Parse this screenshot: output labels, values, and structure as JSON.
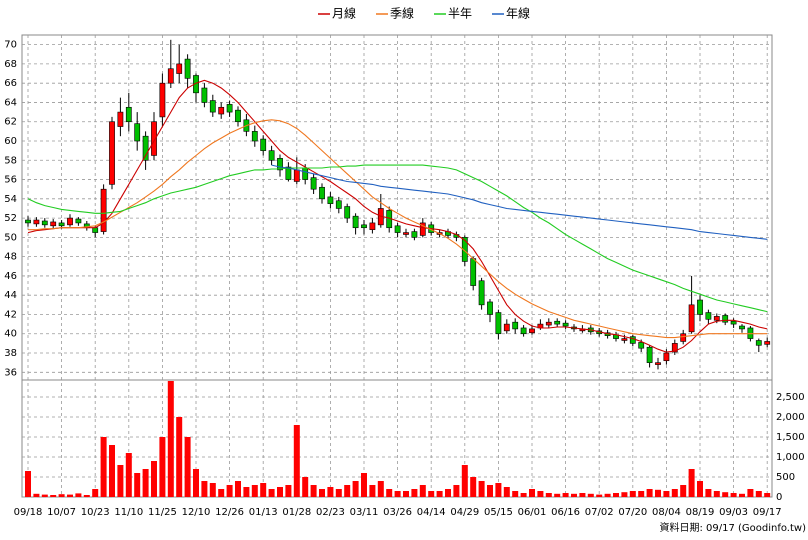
{
  "chart_data": {
    "type": "candlestick",
    "categories": [
      "09/18",
      null,
      null,
      null,
      "10/07",
      null,
      null,
      null,
      "10/23",
      null,
      null,
      null,
      "11/10",
      null,
      null,
      null,
      "11/25",
      null,
      null,
      null,
      "12/10",
      null,
      null,
      null,
      "12/26",
      null,
      null,
      null,
      "01/13",
      null,
      null,
      null,
      "01/28",
      null,
      null,
      null,
      "02/23",
      null,
      null,
      null,
      "03/11",
      null,
      null,
      null,
      "03/26",
      null,
      null,
      null,
      "04/14",
      null,
      null,
      null,
      "04/29",
      null,
      null,
      null,
      "05/15",
      null,
      null,
      null,
      "06/01",
      null,
      null,
      null,
      "06/16",
      null,
      null,
      null,
      "07/02",
      null,
      null,
      null,
      "07/20",
      null,
      null,
      null,
      "08/04",
      null,
      null,
      null,
      "08/19",
      null,
      null,
      null,
      "09/03",
      null,
      null,
      null,
      "09/17"
    ],
    "open": [
      51.8,
      51.4,
      51.7,
      51.2,
      51.5,
      51.3,
      51.9,
      51.4,
      51,
      50.6,
      55.5,
      61.5,
      63.5,
      61.8,
      60.5,
      58.5,
      62.5,
      66,
      67,
      68.5,
      66.8,
      65.5,
      64.2,
      62.8,
      63.8,
      63.2,
      62.2,
      61,
      60.2,
      59,
      58.2,
      57.3,
      55.8,
      57.2,
      56.2,
      55.2,
      54.2,
      53.8,
      53.2,
      52.2,
      51.3,
      50.8,
      51.3,
      52.8,
      51.2,
      50.3,
      50.6,
      50.2,
      51.3,
      50.3,
      50.6,
      50.3,
      50,
      47.8,
      45.5,
      43.3,
      42.2,
      40.3,
      41.2,
      40.6,
      40.1,
      40.6,
      40.9,
      41.3,
      41.1,
      40.7,
      40.3,
      40.6,
      40.3,
      40.1,
      39.9,
      39.3,
      39.7,
      39.1,
      38.6,
      36.8,
      37.2,
      38.1,
      39.2,
      40.2,
      43.5,
      42.2,
      41.4,
      41.9,
      41.3,
      40.8,
      40.6,
      39.3,
      38.9
    ],
    "high": [
      52.2,
      52.1,
      52,
      51.9,
      51.8,
      52.4,
      52.1,
      51.7,
      51.2,
      55.5,
      62.5,
      64.5,
      65,
      63,
      61,
      63,
      67,
      70.5,
      70,
      69,
      67,
      66,
      64.8,
      64,
      64.2,
      63.6,
      62.8,
      61.6,
      60.6,
      59.5,
      58.6,
      57.8,
      58.3,
      57.6,
      56.6,
      55.6,
      54.7,
      54.2,
      53.5,
      52.5,
      51.8,
      52,
      54.5,
      53.2,
      51.5,
      50.9,
      50.9,
      52,
      51.6,
      50.8,
      50.9,
      50.6,
      50.2,
      48,
      45.8,
      43.6,
      42.5,
      41.5,
      41.6,
      40.9,
      40.9,
      41.5,
      41.6,
      41.6,
      41.4,
      41,
      40.9,
      40.9,
      40.6,
      40.4,
      40.2,
      39.9,
      39.9,
      39.4,
      38.8,
      37.5,
      38.4,
      39.4,
      40.4,
      46,
      44,
      42.5,
      42.1,
      42.1,
      41.6,
      41,
      40.8,
      39.5,
      39.6
    ],
    "low": [
      51.1,
      51.1,
      51,
      50.9,
      50.9,
      51.1,
      51.2,
      50.7,
      50,
      50.3,
      55,
      60.5,
      61,
      59,
      57,
      58,
      61.5,
      65.5,
      66,
      65.5,
      64,
      63.5,
      62.5,
      62.3,
      62.5,
      61.5,
      60.5,
      59.4,
      58.5,
      57.5,
      56.3,
      55.8,
      55.5,
      55.5,
      54.5,
      53.5,
      53,
      52.5,
      51.5,
      50.3,
      50.3,
      50.4,
      51,
      50.5,
      50,
      50,
      49.7,
      50,
      50.2,
      50,
      49.9,
      49.6,
      47,
      44.5,
      42.5,
      41.2,
      39.4,
      40,
      40,
      39.7,
      39.9,
      40.4,
      40.6,
      40.7,
      40.5,
      40.2,
      40.1,
      39.9,
      39.7,
      39.5,
      39.2,
      39,
      38.7,
      38.1,
      36.5,
      36.3,
      36.8,
      37.8,
      38.9,
      40,
      41.3,
      41,
      41.1,
      40.9,
      40.6,
      40.1,
      39.2,
      38.1,
      38.6
    ],
    "close": [
      51.5,
      51.8,
      51.3,
      51.6,
      51.2,
      52,
      51.5,
      51,
      50.5,
      55,
      62,
      63,
      62,
      60,
      58,
      62,
      66,
      67.5,
      68,
      66.5,
      65,
      64,
      63,
      63.5,
      63,
      62,
      61,
      60,
      59,
      58,
      57,
      56,
      57,
      56,
      55,
      54,
      53.5,
      53,
      52,
      51,
      51,
      51.5,
      53,
      51,
      50.5,
      50.5,
      50,
      51.5,
      50.5,
      50.5,
      50.2,
      50,
      47.5,
      45,
      43,
      42,
      40,
      41,
      40.5,
      40,
      40.5,
      41,
      41.2,
      41,
      40.8,
      40.5,
      40.5,
      40.2,
      40,
      39.8,
      39.5,
      39.5,
      39,
      38.5,
      37,
      37,
      38,
      39,
      40,
      43,
      42,
      41.5,
      41.8,
      41.2,
      41,
      40.5,
      39.5,
      38.8,
      39.2
    ],
    "up_color": "#ff0000",
    "down_color": "#00c000",
    "ylim": [
      35.2,
      71
    ],
    "yticks": [
      36,
      38,
      40,
      42,
      44,
      46,
      48,
      50,
      52,
      54,
      56,
      58,
      60,
      62,
      64,
      66,
      68,
      70
    ],
    "grid": true,
    "legend": "top",
    "series": [
      {
        "name": "月線",
        "color": "#cc0000",
        "values": [
          50.5,
          50.7,
          50.8,
          50.9,
          51,
          51,
          51,
          51,
          51,
          51.5,
          52.5,
          54,
          55.5,
          57,
          58.5,
          60,
          61.5,
          63,
          64.5,
          65.5,
          66,
          66.3,
          66,
          65.5,
          64.8,
          64,
          63,
          62,
          61,
          60,
          59,
          58.3,
          57.8,
          57.3,
          56.8,
          56.3,
          55.8,
          55.2,
          54.6,
          54,
          53.2,
          52.6,
          52.2,
          52,
          51.7,
          51.4,
          51.2,
          51,
          50.9,
          50.8,
          50.6,
          50.3,
          49.7,
          48.8,
          47.5,
          46,
          44.5,
          43,
          42,
          41.3,
          40.8,
          40.6,
          40.6,
          40.7,
          40.7,
          40.6,
          40.5,
          40.4,
          40.2,
          40,
          39.9,
          39.7,
          39.5,
          39.2,
          38.8,
          38.4,
          38.1,
          38.2,
          38.6,
          39.3,
          40.2,
          41,
          41.3,
          41.4,
          41.4,
          41.2,
          41,
          40.7,
          40.5
        ]
      },
      {
        "name": "季線",
        "color": "#f07820",
        "values": [
          50.8,
          50.8,
          50.9,
          50.9,
          51,
          51,
          51,
          51.1,
          51.2,
          51.6,
          52.1,
          52.6,
          53.1,
          53.6,
          54.2,
          54.8,
          55.5,
          56.3,
          57,
          57.8,
          58.5,
          59.2,
          59.8,
          60.3,
          60.8,
          61.2,
          61.6,
          61.9,
          62.1,
          62.2,
          62.1,
          61.8,
          61.3,
          60.6,
          59.8,
          59,
          58.2,
          57.4,
          56.6,
          55.8,
          55,
          54.2,
          53.6,
          53,
          52.5,
          52,
          51.6,
          51.2,
          50.8,
          50.4,
          49.9,
          49.3,
          48.6,
          47.8,
          47,
          46.2,
          45.4,
          44.7,
          44.1,
          43.6,
          43.1,
          42.7,
          42.3,
          42,
          41.7,
          41.4,
          41.2,
          41,
          40.8,
          40.6,
          40.4,
          40.2,
          40,
          39.9,
          39.8,
          39.7,
          39.6,
          39.6,
          39.7,
          39.8,
          39.9,
          40,
          40,
          40,
          40,
          40,
          40,
          40,
          40
        ]
      },
      {
        "name": "半年",
        "color": "#22cc22",
        "values": [
          54,
          53.6,
          53.3,
          53.1,
          52.9,
          52.8,
          52.7,
          52.6,
          52.5,
          52.5,
          52.6,
          52.7,
          53,
          53.3,
          53.6,
          54,
          54.3,
          54.6,
          54.8,
          55,
          55.2,
          55.5,
          55.8,
          56.1,
          56.4,
          56.6,
          56.8,
          57,
          57,
          57.1,
          57.1,
          57.2,
          57.2,
          57.2,
          57.2,
          57.2,
          57.3,
          57.3,
          57.4,
          57.4,
          57.5,
          57.5,
          57.5,
          57.5,
          57.5,
          57.5,
          57.5,
          57.5,
          57.4,
          57.3,
          57.2,
          57,
          56.6,
          56.2,
          55.8,
          55.3,
          54.8,
          54.3,
          53.7,
          53.1,
          52.6,
          52,
          51.5,
          50.9,
          50.3,
          49.8,
          49.3,
          48.8,
          48.3,
          47.8,
          47.4,
          47,
          46.6,
          46.3,
          46,
          45.7,
          45.4,
          45.1,
          44.7,
          44.4,
          44.1,
          43.8,
          43.5,
          43.3,
          43.1,
          42.9,
          42.7,
          42.5,
          42.3
        ]
      },
      {
        "name": "年線",
        "color": "#2060c0",
        "values": [
          null,
          null,
          null,
          null,
          null,
          null,
          null,
          null,
          null,
          null,
          null,
          null,
          null,
          null,
          null,
          null,
          null,
          null,
          null,
          null,
          null,
          null,
          null,
          null,
          null,
          null,
          null,
          null,
          null,
          57.5,
          57.3,
          57.2,
          57,
          56.8,
          56.6,
          56.4,
          56.2,
          56,
          55.8,
          55.7,
          55.6,
          55.5,
          55.3,
          55.2,
          55.1,
          55,
          54.9,
          54.8,
          54.7,
          54.6,
          54.5,
          54.3,
          54.1,
          53.9,
          53.6,
          53.4,
          53.2,
          53,
          52.9,
          52.8,
          52.7,
          52.6,
          52.5,
          52.4,
          52.3,
          52.2,
          52.1,
          52,
          51.9,
          51.8,
          51.7,
          51.6,
          51.5,
          51.4,
          51.3,
          51.2,
          51.1,
          51,
          50.9,
          50.8,
          50.6,
          50.5,
          50.4,
          50.3,
          50.2,
          50.1,
          50,
          49.9,
          49.8
        ]
      }
    ],
    "volume": {
      "color": "#ff0000",
      "y2lim": [
        0,
        2925
      ],
      "y2ticks": [
        0,
        500,
        {
          "value": 1000,
          "label": "1,000"
        },
        {
          "value": 1500,
          "label": "1,500"
        },
        {
          "value": 2000,
          "label": "2,000"
        },
        {
          "value": 2500,
          "label": "2,500"
        }
      ],
      "values": [
        650,
        80,
        60,
        50,
        70,
        60,
        90,
        50,
        200,
        1500,
        1300,
        800,
        1100,
        600,
        700,
        900,
        1500,
        2900,
        2000,
        1500,
        700,
        400,
        350,
        200,
        300,
        400,
        250,
        300,
        350,
        200,
        250,
        300,
        1800,
        500,
        300,
        200,
        250,
        200,
        300,
        400,
        600,
        300,
        400,
        200,
        150,
        150,
        200,
        300,
        150,
        150,
        200,
        300,
        800,
        500,
        400,
        300,
        350,
        250,
        150,
        100,
        200,
        150,
        100,
        80,
        100,
        80,
        100,
        80,
        60,
        80,
        100,
        120,
        150,
        150,
        200,
        180,
        150,
        200,
        300,
        700,
        400,
        200,
        150,
        120,
        100,
        80,
        200,
        150,
        100
      ]
    },
    "footer": "資料日期: 09/17 (Goodinfo.tw)"
  }
}
